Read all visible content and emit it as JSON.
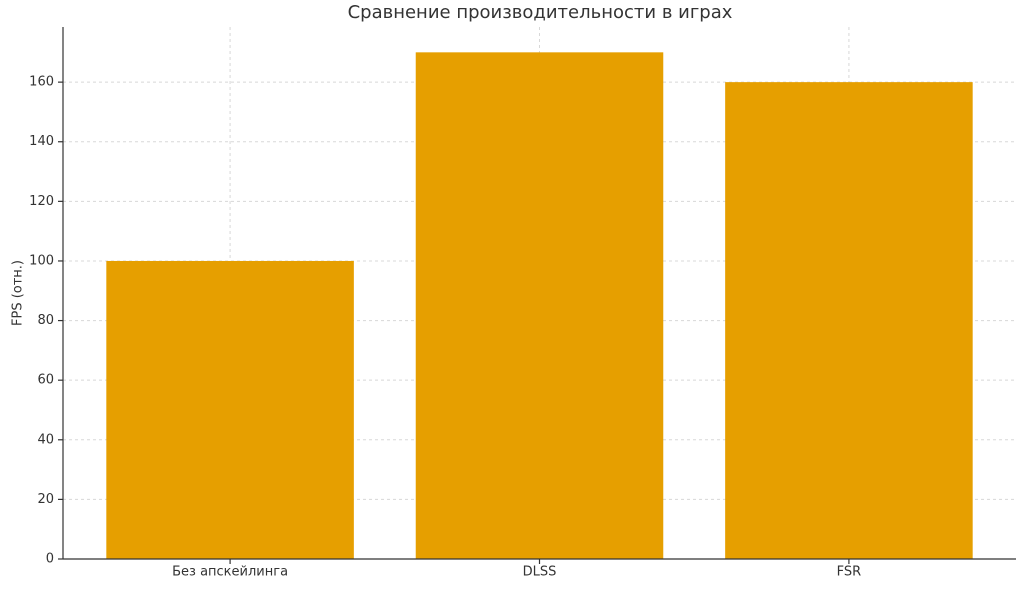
{
  "chart_data": {
    "type": "bar",
    "title": "Сравнение производительности в играх",
    "y_label": "FPS (отн.)",
    "categories": [
      "Без апскейлинга",
      "DLSS",
      "FSR"
    ],
    "values": [
      100,
      170,
      160
    ],
    "color": "#e69f00",
    "ylim": [
      0,
      178.5
    ],
    "yticks": [
      0,
      20,
      40,
      60,
      80,
      100,
      120,
      140,
      160
    ],
    "grid": true
  }
}
